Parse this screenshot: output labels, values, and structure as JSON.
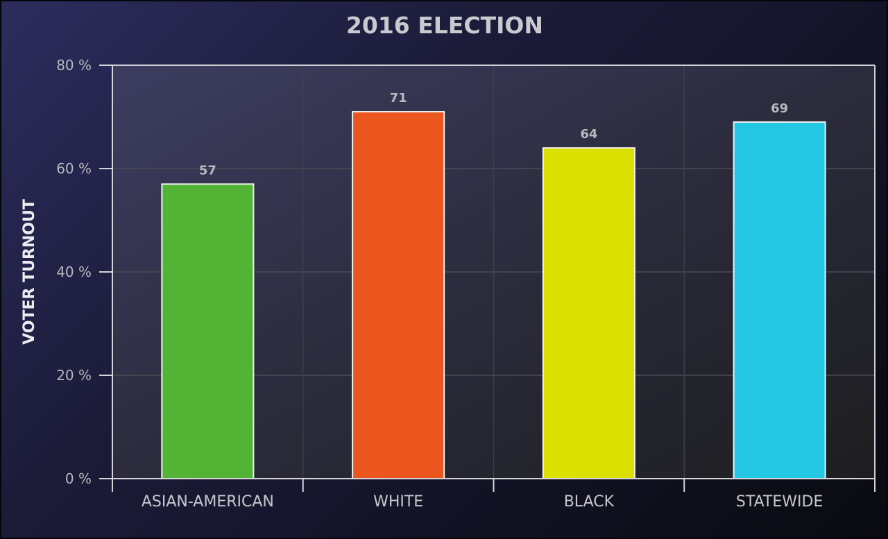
{
  "chart_data": {
    "type": "bar",
    "title": "2016 ELECTION",
    "xlabel": "",
    "ylabel": "VOTER TURNOUT",
    "categories": [
      "ASIAN-AMERICAN",
      "WHITE",
      "BLACK",
      "STATEWIDE"
    ],
    "values": [
      57,
      71,
      64,
      69
    ],
    "value_labels": [
      "57",
      "71",
      "64",
      "69"
    ],
    "colors": [
      "#52b335",
      "#ea561d",
      "#dce000",
      "#24c8e4"
    ],
    "ylim": [
      0,
      80
    ],
    "yticks": [
      0,
      20,
      40,
      60,
      80
    ],
    "ytick_labels": [
      "0 %",
      "20 %",
      "40 %",
      "60 %",
      "80 %"
    ],
    "grid": true,
    "legend": "none"
  }
}
